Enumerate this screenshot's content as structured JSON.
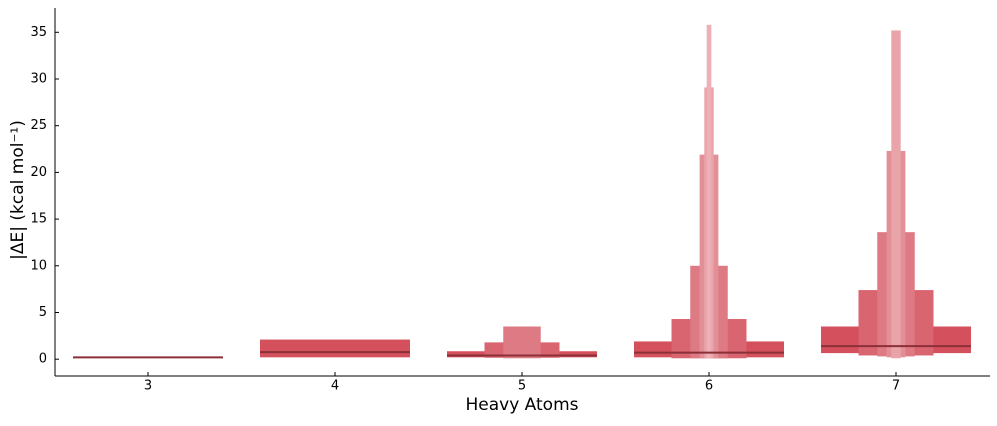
{
  "chart_data": {
    "type": "boxen",
    "x_label": "Heavy Atoms",
    "y_label": "|ΔE| (kcal mol⁻¹)",
    "categories": [
      "3",
      "4",
      "5",
      "6",
      "7"
    ],
    "medians": [
      0.2,
      0.75,
      0.4,
      0.7,
      1.4
    ],
    "boxes": [
      [
        [
          0.15,
          0.25
        ]
      ],
      [
        [
          0.2,
          2.1
        ]
      ],
      [
        [
          0.2,
          0.85
        ],
        [
          0.15,
          1.8
        ],
        [
          0.1,
          3.5
        ]
      ],
      [
        [
          0.2,
          1.9
        ],
        [
          0.1,
          4.3
        ],
        [
          0.1,
          10.0
        ],
        [
          0.1,
          21.9
        ],
        [
          0.1,
          29.1
        ],
        [
          0.1,
          35.8
        ]
      ],
      [
        [
          0.65,
          3.5
        ],
        [
          0.4,
          7.4
        ],
        [
          0.3,
          13.6
        ],
        [
          0.2,
          22.3
        ],
        [
          0.1,
          35.2
        ]
      ]
    ],
    "color": "#d4505c",
    "median_color": "#8b2f38",
    "ylim": [
      -1.8,
      37.6
    ],
    "yticks": [
      0,
      5,
      10,
      15,
      20,
      25,
      30,
      35
    ]
  }
}
